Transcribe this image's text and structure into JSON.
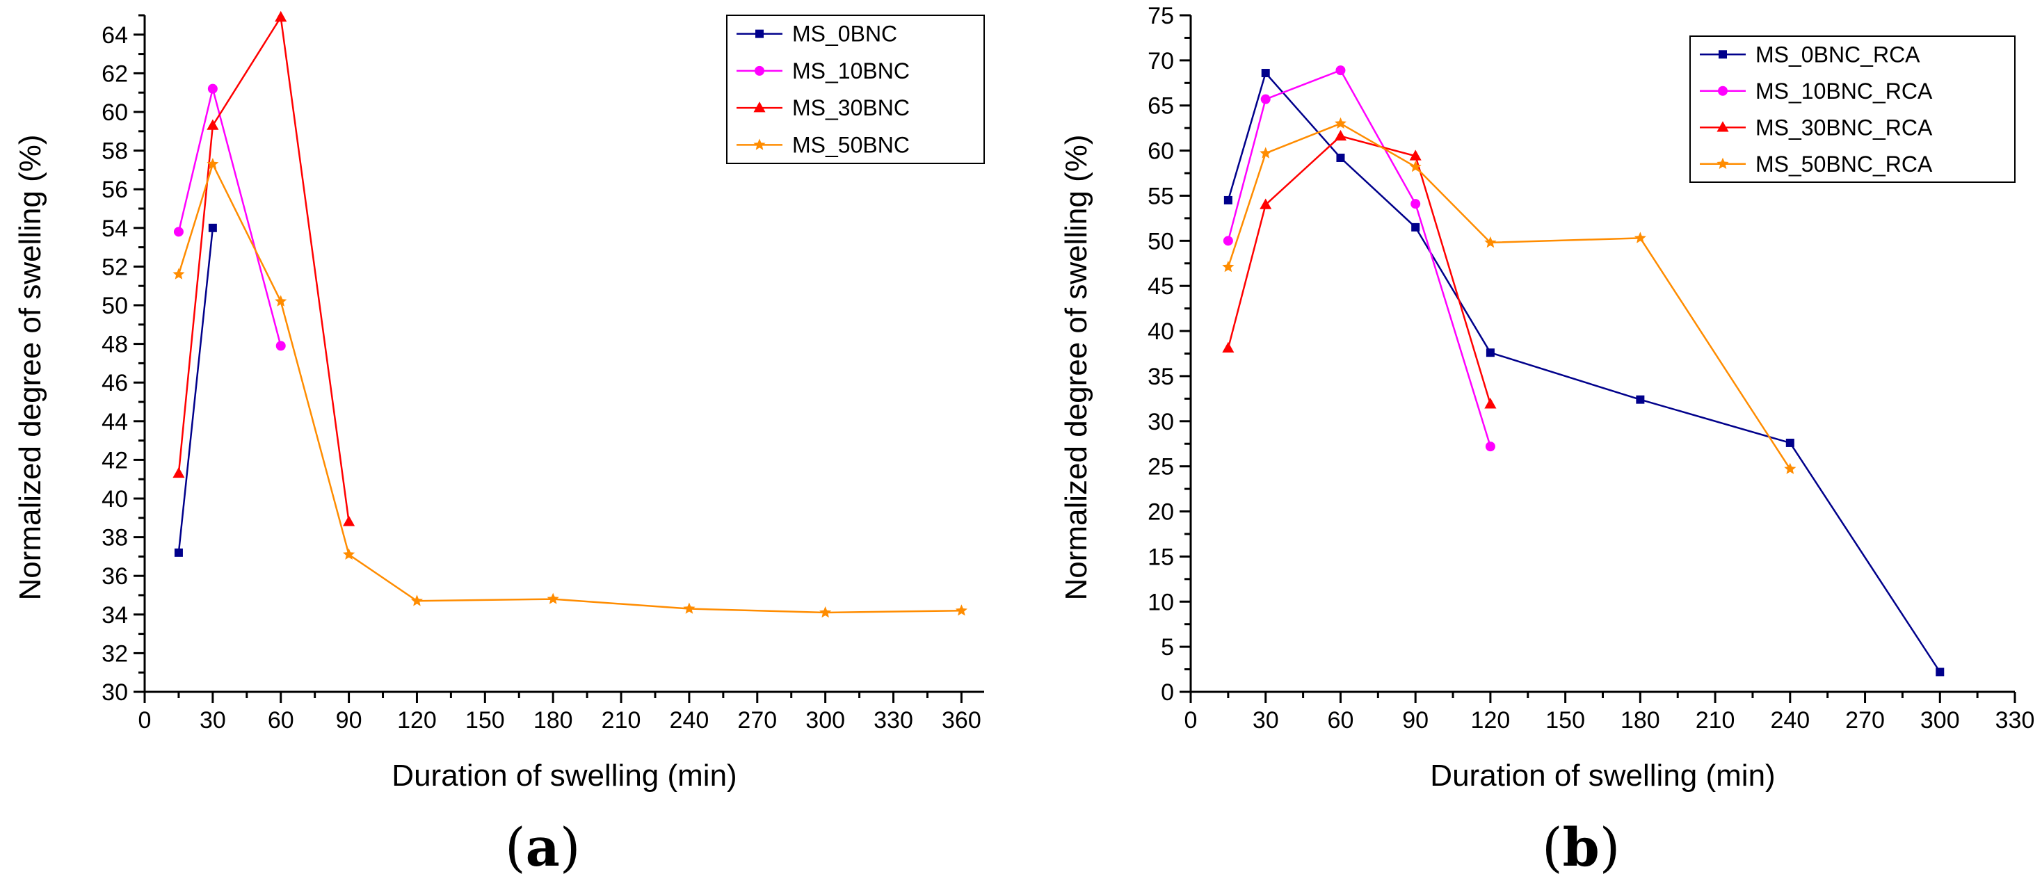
{
  "chart_data": [
    {
      "type": "line",
      "panel_label": "a",
      "xlabel": "Duration of swelling (min)",
      "ylabel": "Normalized degree of swelling (%)",
      "xlim": [
        0,
        370
      ],
      "ylim": [
        30,
        65
      ],
      "xticks": [
        0,
        30,
        60,
        90,
        120,
        150,
        180,
        210,
        240,
        270,
        300,
        330,
        360
      ],
      "yticks": [
        30,
        32,
        34,
        36,
        38,
        40,
        42,
        44,
        46,
        48,
        50,
        52,
        54,
        56,
        58,
        60,
        62,
        64
      ],
      "legend_position": "top-right",
      "series": [
        {
          "name": "MS_0BNC",
          "color": "#00008B",
          "marker": "square",
          "x": [
            15,
            30
          ],
          "y": [
            37.2,
            54.0
          ]
        },
        {
          "name": "MS_10BNC",
          "color": "#FF00FF",
          "marker": "circle",
          "x": [
            15,
            30,
            60
          ],
          "y": [
            53.8,
            61.2,
            47.9
          ]
        },
        {
          "name": "MS_30BNC",
          "color": "#FF0000",
          "marker": "triangle",
          "x": [
            15,
            30,
            60,
            90
          ],
          "y": [
            41.3,
            59.3,
            64.9,
            38.8
          ]
        },
        {
          "name": "MS_50BNC",
          "color": "#FF8C00",
          "marker": "star",
          "x": [
            15,
            30,
            60,
            90,
            120,
            180,
            240,
            300,
            360
          ],
          "y": [
            51.6,
            57.3,
            50.2,
            37.1,
            34.7,
            34.8,
            34.3,
            34.1,
            34.2
          ]
        }
      ]
    },
    {
      "type": "line",
      "panel_label": "b",
      "xlabel": "Duration of swelling (min)",
      "ylabel": "Normalized degree of swelling (%)",
      "xlim": [
        0,
        330
      ],
      "ylim": [
        0,
        75
      ],
      "xticks": [
        0,
        30,
        60,
        90,
        120,
        150,
        180,
        210,
        240,
        270,
        300,
        330
      ],
      "yticks": [
        0,
        5,
        10,
        15,
        20,
        25,
        30,
        35,
        40,
        45,
        50,
        55,
        60,
        65,
        70,
        75
      ],
      "legend_position": "top-right",
      "series": [
        {
          "name": "MS_0BNC_RCA",
          "color": "#00008B",
          "marker": "square",
          "x": [
            15,
            30,
            60,
            90,
            120,
            180,
            240,
            300
          ],
          "y": [
            54.5,
            68.6,
            59.2,
            51.5,
            37.6,
            32.4,
            27.6,
            2.2
          ]
        },
        {
          "name": "MS_10BNC_RCA",
          "color": "#FF00FF",
          "marker": "circle",
          "x": [
            15,
            30,
            60,
            90,
            120
          ],
          "y": [
            50.0,
            65.7,
            68.9,
            54.1,
            27.2
          ]
        },
        {
          "name": "MS_30BNC_RCA",
          "color": "#FF0000",
          "marker": "triangle",
          "x": [
            15,
            30,
            60,
            90,
            120
          ],
          "y": [
            38.1,
            54.0,
            61.6,
            59.4,
            31.9
          ]
        },
        {
          "name": "MS_50BNC_RCA",
          "color": "#FF8C00",
          "marker": "star",
          "x": [
            15,
            30,
            60,
            90,
            120,
            180,
            240
          ],
          "y": [
            47.1,
            59.7,
            63.0,
            58.2,
            49.8,
            50.3,
            24.7
          ]
        }
      ]
    }
  ]
}
